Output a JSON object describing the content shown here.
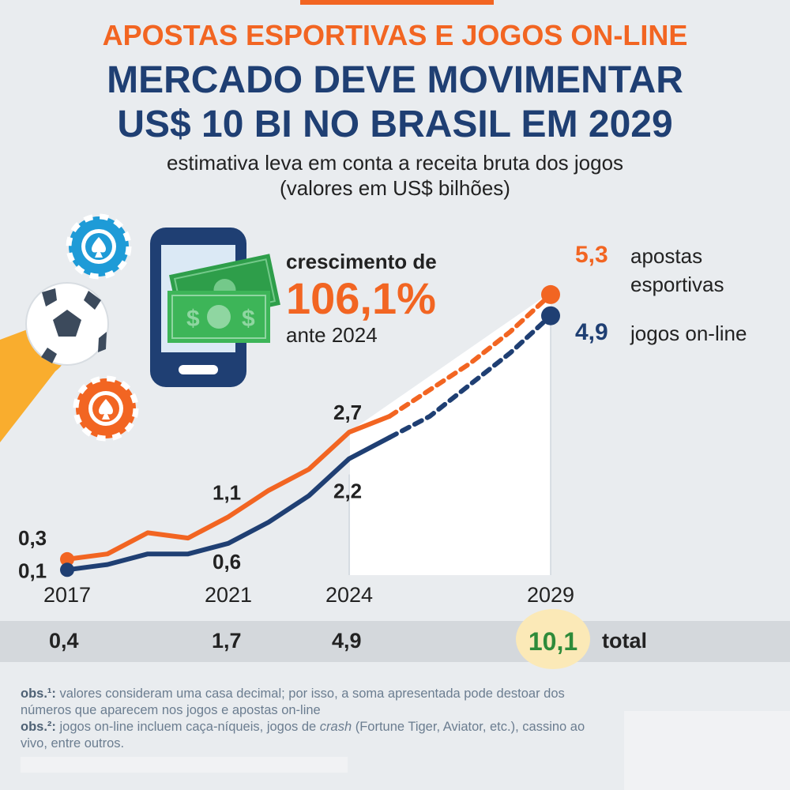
{
  "header": {
    "kicker": "APOSTAS ESPORTIVAS E JOGOS ON-LINE",
    "headline_line1": "MERCADO DEVE MOVIMENTAR",
    "headline_line2": "US$ 10 BI NO BRASIL EM 2029",
    "subtitle_line1": "estimativa leva em conta a receita bruta dos jogos",
    "subtitle_line2": "(valores em US$ bilhões)"
  },
  "growth": {
    "label": "crescimento de",
    "value": "106,1%",
    "reference": "ante 2024"
  },
  "legend": {
    "bets_value": "5,3",
    "bets_name_line1": "apostas",
    "bets_name_line2": "esportivas",
    "online_value": "4,9",
    "online_name": "jogos on-line"
  },
  "totals": {
    "t2017": "0,4",
    "t2021": "1,7",
    "t2024": "4,9",
    "t2029": "10,1",
    "label": "total"
  },
  "notes": {
    "obs1_label": "obs.¹:",
    "obs1_text": " valores consideram uma casa decimal; por isso, a soma apresentada pode destoar dos números que aparecem nos jogos e apostas on-line",
    "obs2_label": "obs.²:",
    "obs2_text_a": " jogos on-line incluem caça-níqueis, jogos de ",
    "obs2_italic": "crash",
    "obs2_text_b": " (Fortune Tiger, Aviator, etc.), cassino ao vivo, entre outros."
  },
  "colors": {
    "orange": "#f26522",
    "navy": "#1f3f73",
    "green": "#2e8b3a",
    "background": "#e9ecef"
  },
  "icons": [
    "poker-chip-icon",
    "soccer-ball-icon",
    "hand-icon",
    "smartphone-icon",
    "money-bill-icon"
  ],
  "chart_data": {
    "type": "line",
    "x": [
      2017,
      2018,
      2019,
      2020,
      2021,
      2022,
      2023,
      2024,
      2025,
      2026,
      2027,
      2028,
      2029
    ],
    "x_tick_labels": [
      "2017",
      "2021",
      "2024",
      "2029"
    ],
    "x_ticks": [
      2017,
      2021,
      2024,
      2029
    ],
    "ylim": [
      0,
      6
    ],
    "projection_start": 2025,
    "series": [
      {
        "name": "apostas esportivas",
        "color": "#f26522",
        "values": [
          0.3,
          0.4,
          0.8,
          0.7,
          1.1,
          1.6,
          2.0,
          2.7,
          3.0,
          3.5,
          4.0,
          4.6,
          5.3
        ]
      },
      {
        "name": "jogos on-line",
        "color": "#1f3f73",
        "values": [
          0.1,
          0.2,
          0.4,
          0.4,
          0.6,
          1.0,
          1.5,
          2.2,
          2.6,
          3.0,
          3.6,
          4.2,
          4.9
        ]
      }
    ],
    "data_labels": [
      {
        "series": 0,
        "x": 2017,
        "text": "0,3"
      },
      {
        "series": 1,
        "x": 2017,
        "text": "0,1"
      },
      {
        "series": 0,
        "x": 2021,
        "text": "1,1"
      },
      {
        "series": 1,
        "x": 2021,
        "text": "0,6"
      },
      {
        "series": 0,
        "x": 2024,
        "text": "2,7"
      },
      {
        "series": 1,
        "x": 2024,
        "text": "2,2"
      }
    ]
  }
}
